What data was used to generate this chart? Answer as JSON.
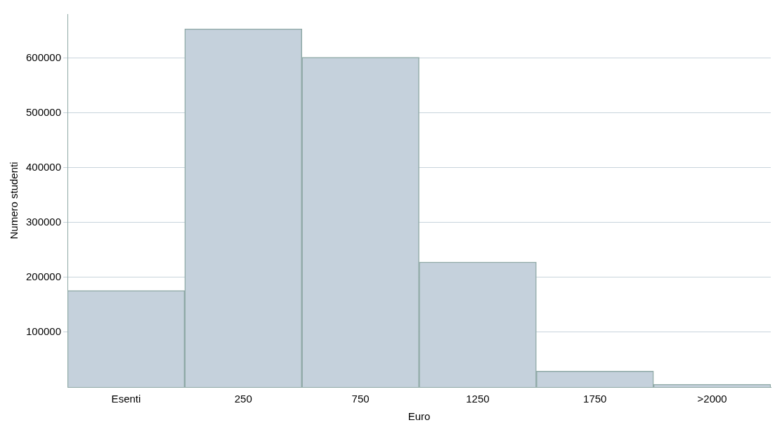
{
  "chart_data": {
    "type": "bar",
    "xlabel": "Euro",
    "ylabel": "Numero studenti",
    "categories": [
      "Esenti",
      "250",
      "750",
      "1250",
      "1750",
      ">2000"
    ],
    "values": [
      176000,
      653000,
      601000,
      228000,
      29000,
      5000
    ],
    "color": "#c5d1dc",
    "ylim": [
      0,
      680000
    ],
    "yticks": [
      100000,
      200000,
      300000,
      400000,
      500000,
      600000
    ],
    "grid": "y"
  }
}
